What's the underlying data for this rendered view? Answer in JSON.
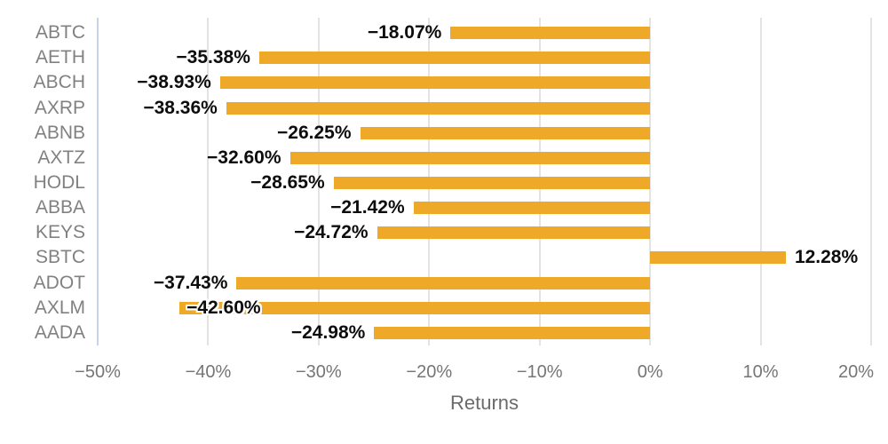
{
  "chart_data": {
    "type": "bar",
    "orientation": "horizontal",
    "title": "",
    "xlabel": "Returns",
    "ylabel": "",
    "legend_position": "none",
    "grid": true,
    "categories": [
      "ABTC",
      "AETH",
      "ABCH",
      "AXRP",
      "ABNB",
      "AXTZ",
      "HODL",
      "ABBA",
      "KEYS",
      "SBTC",
      "ADOT",
      "AXLM",
      "AADA"
    ],
    "values": [
      -18.07,
      -35.38,
      -38.93,
      -38.36,
      -26.25,
      -32.6,
      -28.65,
      -21.42,
      -24.72,
      12.28,
      -37.43,
      -42.6,
      -24.98
    ],
    "data_labels": [
      "−18.07%",
      "−35.38%",
      "−38.93%",
      "−38.36%",
      "−26.25%",
      "−32.60%",
      "−28.65%",
      "−21.42%",
      "−24.72%",
      "12.28%",
      "−37.43%",
      "−42.60%",
      "−24.98%"
    ],
    "xlim": [
      -50,
      20
    ],
    "xticks": [
      {
        "value": -50,
        "label": "−50%"
      },
      {
        "value": -40,
        "label": "−40%"
      },
      {
        "value": -30,
        "label": "−30%"
      },
      {
        "value": -20,
        "label": "−20%"
      },
      {
        "value": -10,
        "label": "−10%"
      },
      {
        "value": 0,
        "label": "0%"
      },
      {
        "value": 10,
        "label": "10%"
      },
      {
        "value": 20,
        "label": "20%"
      }
    ],
    "colors": {
      "bar": "#EEA928",
      "grid_line": "#E3E3E3",
      "axis_line": "#C8D4E3",
      "category_label": "#818181",
      "tick_label": "#757575",
      "axis_title": "#6B6B6B",
      "data_label": "#0D0D0D",
      "data_label_outline": "#FFFFFF",
      "background": "#FFFFFF"
    }
  }
}
